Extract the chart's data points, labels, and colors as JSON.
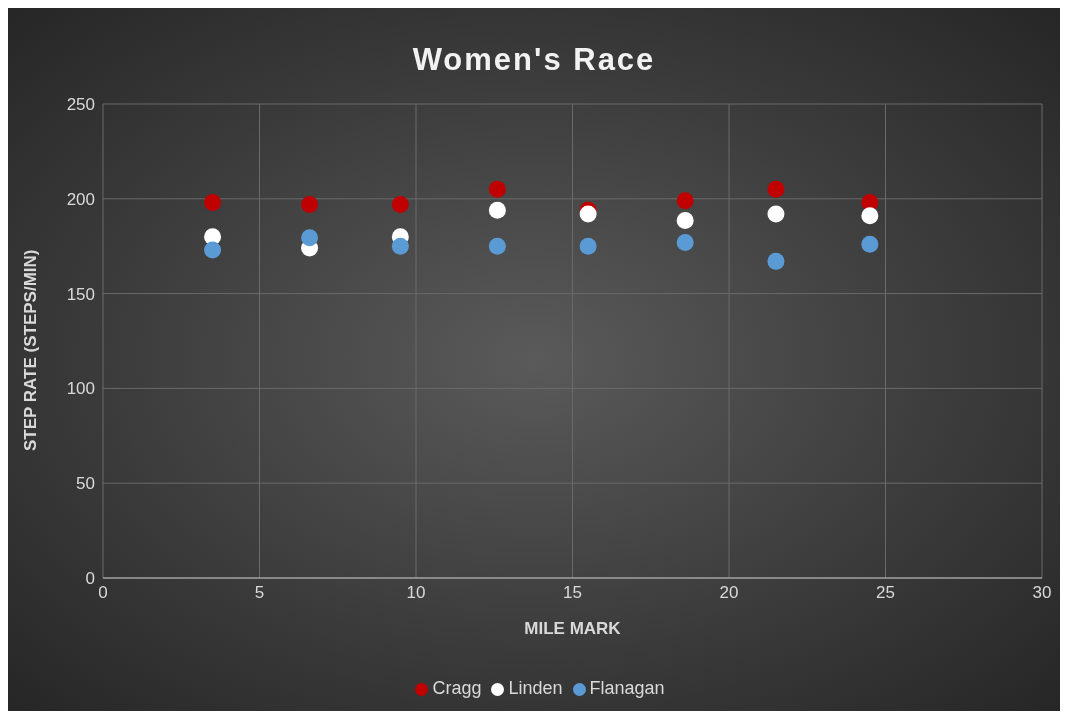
{
  "chart_data": {
    "type": "scatter",
    "title": "Women's Race",
    "xlabel": "MILE MARK",
    "ylabel": "STEP RATE (STEPS/MIN)",
    "xlim": [
      0,
      30
    ],
    "xticks": [
      0,
      5,
      10,
      15,
      20,
      25,
      30
    ],
    "ylim": [
      0,
      250
    ],
    "yticks": [
      0,
      50,
      100,
      150,
      200,
      250
    ],
    "grid": true,
    "legend": "bottom",
    "marker": "circle",
    "x": [
      3.5,
      6.6,
      9.5,
      12.6,
      15.5,
      18.6,
      21.5,
      24.5
    ],
    "series": [
      {
        "name": "Cragg",
        "color": "#c00000",
        "values": [
          198,
          197,
          197,
          205,
          194,
          199,
          205,
          198
        ]
      },
      {
        "name": "Linden",
        "color": "#ffffff",
        "values": [
          180,
          174,
          180,
          194,
          192,
          188.5,
          192,
          191
        ]
      },
      {
        "name": "Flanagan",
        "color": "#5b9bd5",
        "values": [
          173,
          179.5,
          175,
          175,
          175,
          177,
          167,
          176
        ]
      }
    ]
  }
}
